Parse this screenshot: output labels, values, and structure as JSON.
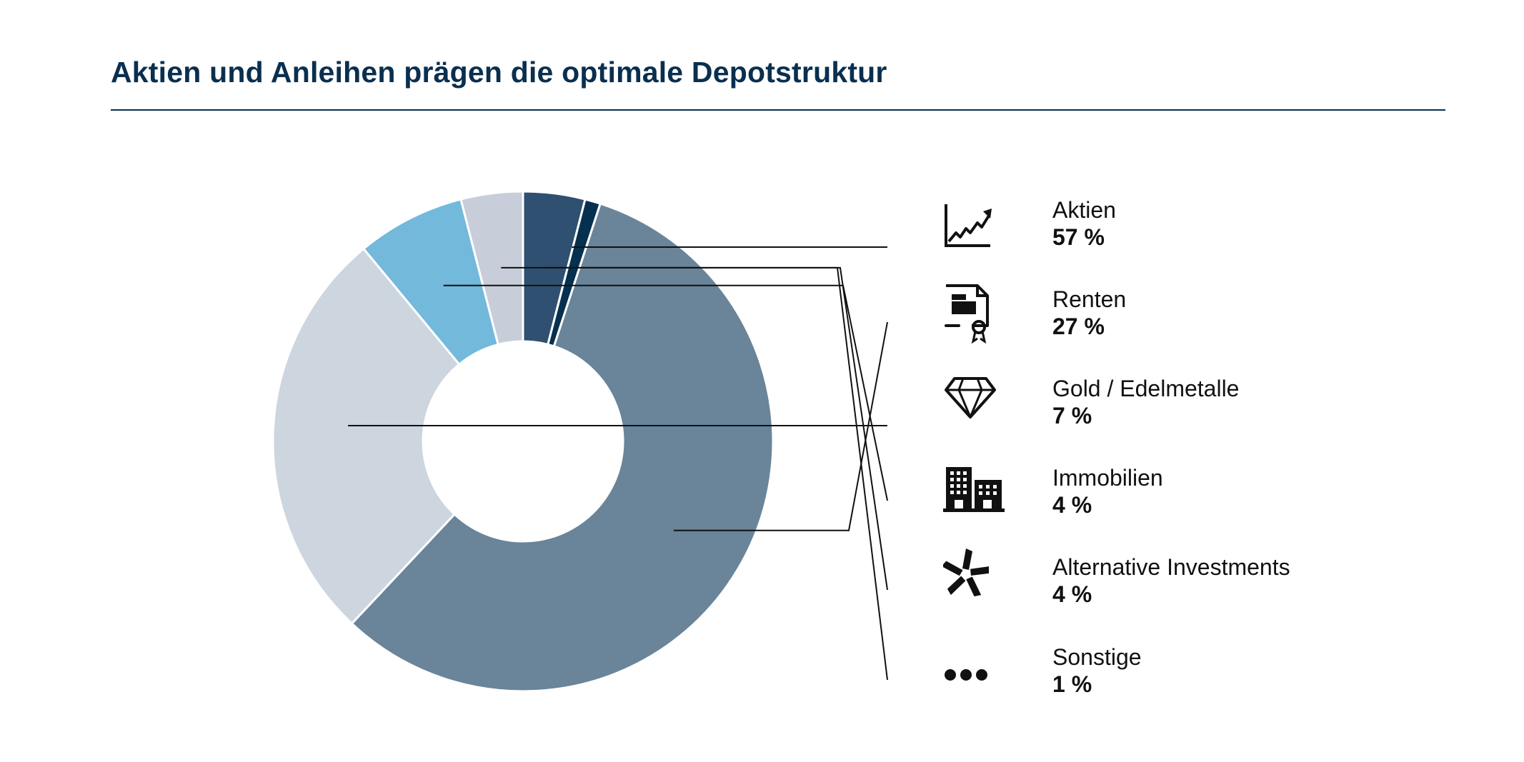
{
  "header": {
    "title": "Aktien und Anleihen prägen die optimale Depotstruktur"
  },
  "chart_data": {
    "type": "pie",
    "title": "Aktien und Anleihen prägen die optimale Depotstruktur",
    "categories": [
      "Aktien",
      "Renten",
      "Gold / Edelmetalle",
      "Immobilien",
      "Alternative Investments",
      "Sonstige"
    ],
    "values": [
      57,
      27,
      7,
      4,
      4,
      1
    ],
    "value_labels": [
      "57 %",
      "27 %",
      "7 %",
      "4 %",
      "4 %",
      "1 %"
    ],
    "colors": [
      "#6a8499",
      "#cdd5de",
      "#72b9dc",
      "#c7cdd9",
      "#2f5070",
      "#06304f"
    ],
    "legend": "right",
    "donut": true
  },
  "legend": [
    {
      "label": "Aktien",
      "value": "57 %",
      "icon": "chart-trend-icon"
    },
    {
      "label": "Renten",
      "value": "27 %",
      "icon": "certificate-icon"
    },
    {
      "label": "Gold / Edelmetalle",
      "value": "7 %",
      "icon": "diamond-icon"
    },
    {
      "label": "Immobilien",
      "value": "4 %",
      "icon": "buildings-icon"
    },
    {
      "label": "Alternative Investments",
      "value": "4 %",
      "icon": "pinwheel-icon"
    },
    {
      "label": "Sonstige",
      "value": "1 %",
      "icon": "more-dots-icon"
    }
  ]
}
